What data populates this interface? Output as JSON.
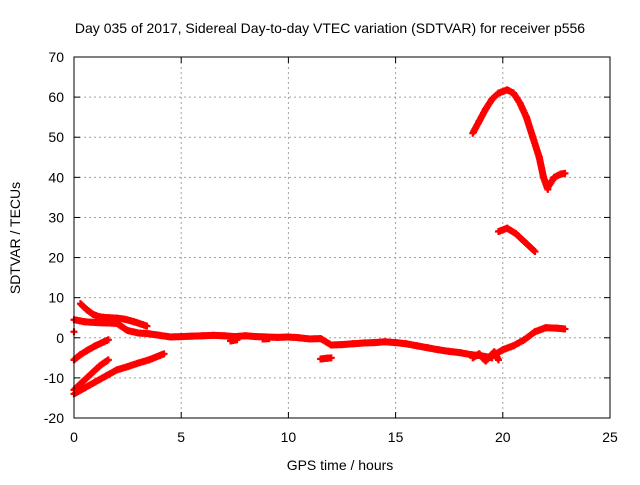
{
  "chart_data": {
    "type": "scatter",
    "title": "Day 035 of 2017, Sidereal Day-to-day VTEC variation (SDTVAR) for receiver p556",
    "xlabel": "GPS time / hours",
    "ylabel": "SDTVAR / TECUs",
    "xlim": [
      0,
      25
    ],
    "ylim": [
      -20,
      70
    ],
    "xticks": [
      0,
      5,
      10,
      15,
      20,
      25
    ],
    "yticks": [
      -20,
      -10,
      0,
      10,
      20,
      30,
      40,
      50,
      60,
      70
    ],
    "grid": true,
    "marker": "plus",
    "series_color": "#ff0000",
    "series": [
      {
        "name": "main-trace",
        "points": [
          [
            0,
            4.5
          ],
          [
            0.5,
            4
          ],
          [
            1,
            3.8
          ],
          [
            1.5,
            3.7
          ],
          [
            2,
            3.6
          ],
          [
            2.5,
            1.8
          ],
          [
            3,
            1.2
          ],
          [
            3.5,
            1.0
          ],
          [
            4,
            0.6
          ],
          [
            4.5,
            0.2
          ],
          [
            5,
            0.3
          ],
          [
            5.5,
            0.4
          ],
          [
            6,
            0.5
          ],
          [
            6.5,
            0.6
          ],
          [
            7,
            0.5
          ],
          [
            7.5,
            0.3
          ],
          [
            8,
            0.5
          ],
          [
            8.5,
            0.3
          ],
          [
            9,
            0.2
          ],
          [
            9.5,
            0.1
          ],
          [
            10,
            0.2
          ],
          [
            10.5,
            0.0
          ],
          [
            11,
            -0.3
          ],
          [
            11.5,
            -0.2
          ],
          [
            12,
            -1.8
          ],
          [
            12.5,
            -1.7
          ],
          [
            13,
            -1.5
          ],
          [
            13.5,
            -1.3
          ],
          [
            14,
            -1.2
          ],
          [
            14.5,
            -1.0
          ],
          [
            15,
            -1.2
          ],
          [
            15.5,
            -1.5
          ],
          [
            16,
            -2.0
          ],
          [
            16.5,
            -2.5
          ],
          [
            17,
            -3.0
          ],
          [
            17.5,
            -3.4
          ],
          [
            18,
            -3.7
          ],
          [
            18.5,
            -4.2
          ],
          [
            19,
            -4.5
          ],
          [
            19.5,
            -5.0
          ]
        ]
      },
      {
        "name": "early-descent",
        "points": [
          [
            0.3,
            8.5
          ],
          [
            0.6,
            7
          ],
          [
            0.9,
            5.8
          ],
          [
            1.2,
            5.2
          ],
          [
            1.6,
            5
          ],
          [
            2,
            4.9
          ],
          [
            2.4,
            4.6
          ],
          [
            2.8,
            4
          ],
          [
            3.2,
            3.3
          ],
          [
            3.4,
            2.9
          ]
        ]
      },
      {
        "name": "rise-branch-a",
        "points": [
          [
            0,
            -5.5
          ],
          [
            0.3,
            -4.2
          ],
          [
            0.6,
            -3.2
          ],
          [
            1,
            -2
          ],
          [
            1.4,
            -1
          ],
          [
            1.6,
            -0.5
          ]
        ]
      },
      {
        "name": "rise-branch-b",
        "points": [
          [
            0,
            -13
          ],
          [
            0.4,
            -11
          ],
          [
            0.8,
            -9
          ],
          [
            1.2,
            -7
          ],
          [
            1.6,
            -5.5
          ]
        ]
      },
      {
        "name": "rise-branch-c",
        "points": [
          [
            0,
            -14
          ],
          [
            0.5,
            -12.5
          ],
          [
            1,
            -11
          ],
          [
            1.5,
            -9.5
          ],
          [
            2,
            -8
          ],
          [
            2.5,
            -7.2
          ],
          [
            3,
            -6.3
          ],
          [
            3.5,
            -5.5
          ],
          [
            4.2,
            -4
          ]
        ]
      },
      {
        "name": "small-segment-1",
        "points": [
          [
            7.3,
            -0.8
          ],
          [
            7.6,
            -0.5
          ]
        ]
      },
      {
        "name": "small-segment-2",
        "points": [
          [
            8.8,
            -0.3
          ],
          [
            9.1,
            -0.2
          ]
        ]
      },
      {
        "name": "small-segment-3",
        "points": [
          [
            11.5,
            -5.3
          ],
          [
            11.8,
            -5.1
          ],
          [
            12,
            -5.0
          ]
        ]
      },
      {
        "name": "late-rise",
        "points": [
          [
            19.5,
            -4.5
          ],
          [
            20,
            -3
          ],
          [
            20.5,
            -2
          ],
          [
            21,
            -0.5
          ],
          [
            21.5,
            1.5
          ],
          [
            22,
            2.5
          ],
          [
            22.5,
            2.4
          ],
          [
            22.9,
            2.2
          ]
        ]
      },
      {
        "name": "late-noise",
        "points": [
          [
            18.6,
            -5
          ],
          [
            18.9,
            -4
          ],
          [
            19.2,
            -5.8
          ],
          [
            19.6,
            -3.5
          ],
          [
            19.8,
            -5.5
          ]
        ]
      },
      {
        "name": "arc-upper",
        "points": [
          [
            18.6,
            51
          ],
          [
            18.9,
            54
          ],
          [
            19.2,
            57
          ],
          [
            19.5,
            59.5
          ],
          [
            19.8,
            61
          ],
          [
            20.2,
            61.8
          ],
          [
            20.5,
            61
          ],
          [
            20.8,
            58.5
          ],
          [
            21.1,
            55
          ],
          [
            21.4,
            50
          ],
          [
            21.7,
            45
          ],
          [
            21.9,
            40
          ],
          [
            22.1,
            37
          ]
        ]
      },
      {
        "name": "arc-tail",
        "points": [
          [
            22.1,
            37.5
          ],
          [
            22.4,
            40
          ],
          [
            22.7,
            40.8
          ],
          [
            22.9,
            41
          ]
        ]
      },
      {
        "name": "mid-segment",
        "points": [
          [
            19.8,
            26.5
          ],
          [
            20.2,
            27.3
          ],
          [
            20.6,
            26
          ],
          [
            21,
            24
          ],
          [
            21.5,
            21.5
          ]
        ]
      },
      {
        "name": "isolated-point",
        "points": [
          [
            0,
            1.5
          ]
        ]
      }
    ]
  }
}
